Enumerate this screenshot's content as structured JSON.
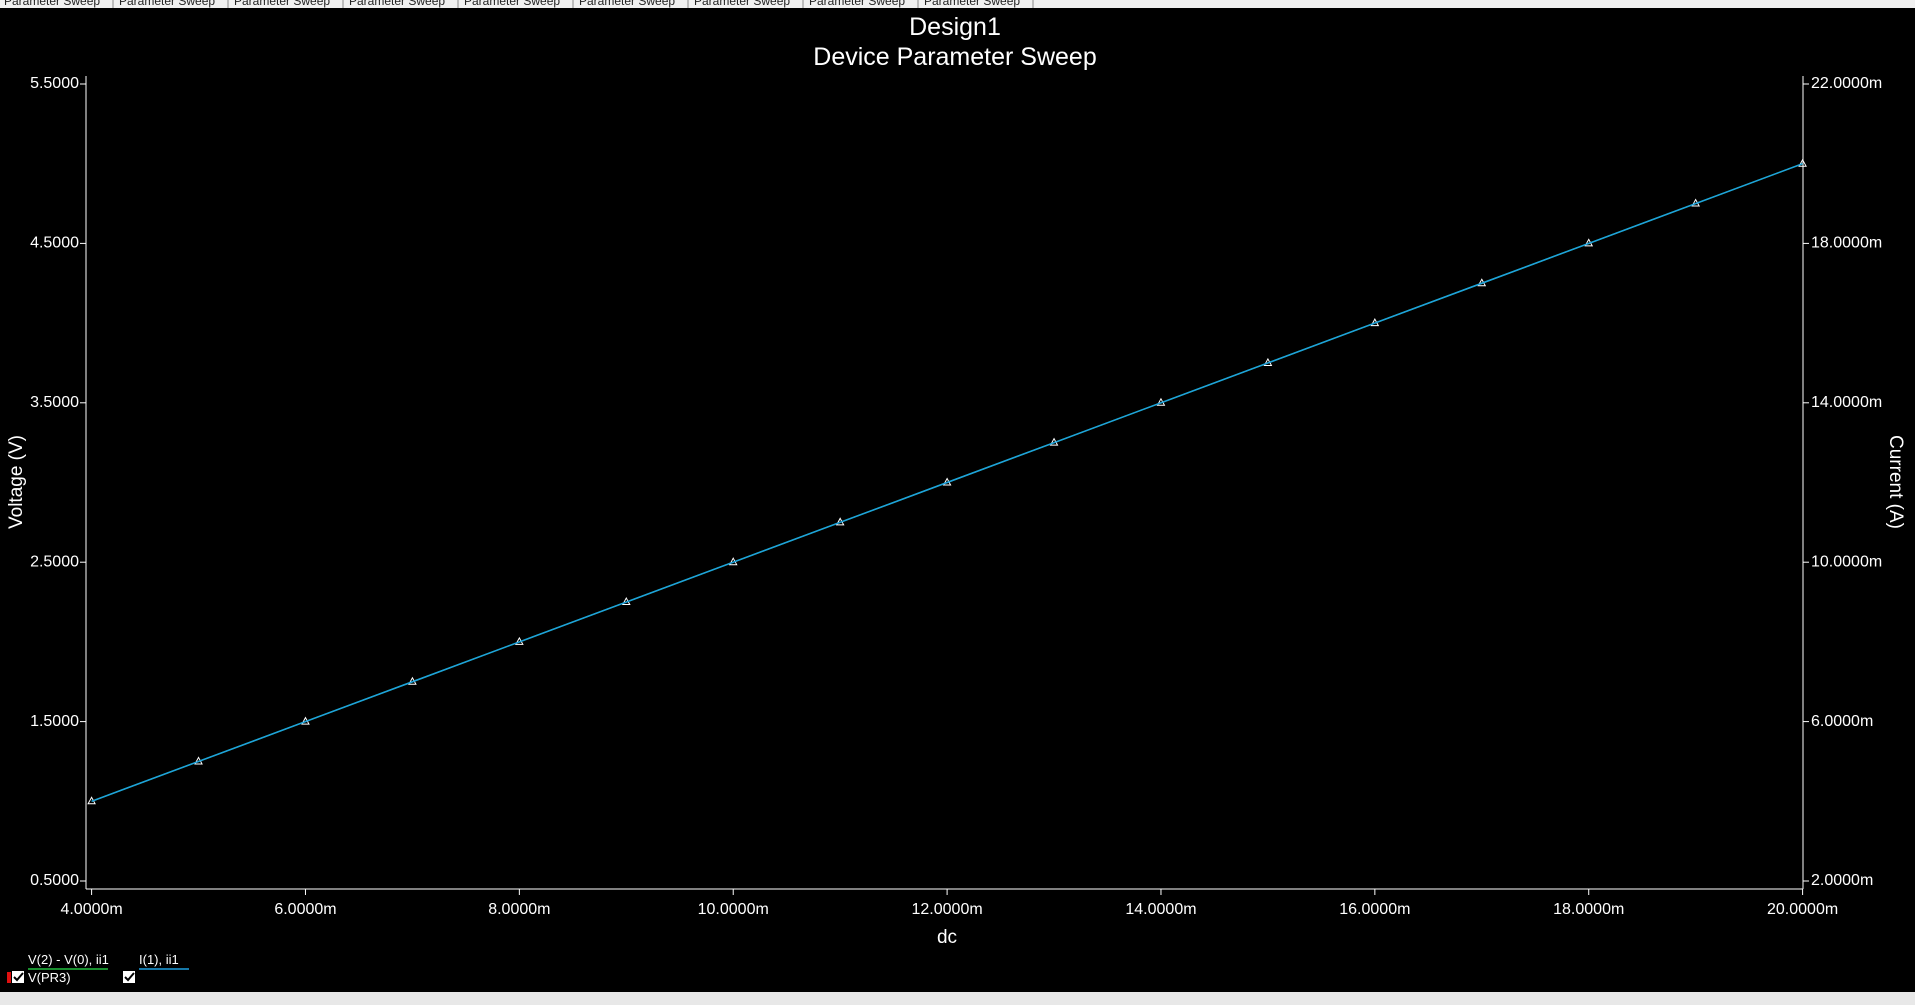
{
  "tabs": [
    "Parameter Sweep",
    "Parameter Sweep",
    "Parameter Sweep",
    "Parameter Sweep",
    "Parameter Sweep",
    "Parameter Sweep",
    "Parameter Sweep",
    "Parameter Sweep",
    "Parameter Sweep"
  ],
  "chart_data": {
    "type": "line",
    "title": "Design1",
    "subtitle": "Device Parameter Sweep",
    "x_label": "dc",
    "y_label": "Voltage (V)",
    "y2_label": "Current (A)",
    "x": [
      0.004,
      0.005,
      0.006,
      0.007,
      0.008,
      0.009,
      0.01,
      0.011,
      0.012,
      0.013,
      0.014,
      0.015,
      0.016,
      0.017,
      0.018,
      0.019,
      0.02
    ],
    "series": [
      {
        "name": "V(2) - V(0), ii1",
        "color": "#22c040",
        "axis": "y",
        "markers": true,
        "values": [
          1.0,
          1.25,
          1.5,
          1.75,
          2.0,
          2.25,
          2.5,
          2.75,
          3.0,
          3.25,
          3.5,
          3.75,
          4.0,
          4.25,
          4.5,
          4.75,
          5.0
        ]
      },
      {
        "name": "I(1), ii1",
        "color": "#1e9fe0",
        "axis": "y2",
        "markers": false,
        "values": [
          0.004,
          0.005,
          0.006,
          0.007,
          0.008,
          0.009,
          0.01,
          0.011,
          0.012,
          0.013,
          0.014,
          0.015,
          0.016,
          0.017,
          0.018,
          0.019,
          0.02
        ]
      }
    ],
    "probe_label": "V(PR3)",
    "xlim": [
      0.004,
      0.02
    ],
    "xticks": [
      {
        "value": 0.004,
        "label": "4.0000m"
      },
      {
        "value": 0.006,
        "label": "6.0000m"
      },
      {
        "value": 0.008,
        "label": "8.0000m"
      },
      {
        "value": 0.01,
        "label": "10.0000m"
      },
      {
        "value": 0.012,
        "label": "12.0000m"
      },
      {
        "value": 0.014,
        "label": "14.0000m"
      },
      {
        "value": 0.016,
        "label": "16.0000m"
      },
      {
        "value": 0.018,
        "label": "18.0000m"
      },
      {
        "value": 0.02,
        "label": "20.0000m"
      }
    ],
    "ylim": [
      0.5,
      5.5
    ],
    "yticks": [
      {
        "value": 0.5,
        "label": "0.5000"
      },
      {
        "value": 1.5,
        "label": "1.5000"
      },
      {
        "value": 2.5,
        "label": "2.5000"
      },
      {
        "value": 3.5,
        "label": "3.5000"
      },
      {
        "value": 4.5,
        "label": "4.5000"
      },
      {
        "value": 5.5,
        "label": "5.5000"
      }
    ],
    "y2lim": [
      0.002,
      0.022
    ],
    "y2ticks": [
      {
        "value": 0.002,
        "label": "2.0000m"
      },
      {
        "value": 0.006,
        "label": "6.0000m"
      },
      {
        "value": 0.01,
        "label": "10.0000m"
      },
      {
        "value": 0.014,
        "label": "14.0000m"
      },
      {
        "value": 0.018,
        "label": "18.0000m"
      },
      {
        "value": 0.022,
        "label": "22.0000m"
      }
    ],
    "grid": false
  }
}
